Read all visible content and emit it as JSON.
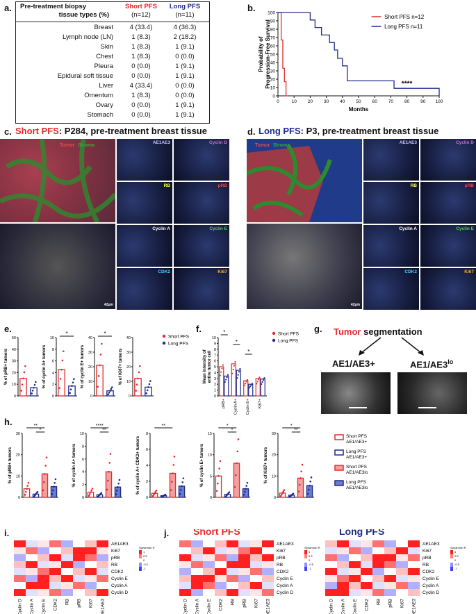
{
  "panel_letters": {
    "a": "a.",
    "b": "b.",
    "c": "c.",
    "d": "d.",
    "e": "e.",
    "f": "f.",
    "g": "g.",
    "h": "h.",
    "i": "i.",
    "j": "j."
  },
  "table_a": {
    "header": [
      "Pre-treatment biopsy",
      "tissue types (%)",
      "Short PFS",
      "(n=12)",
      "Long PFS",
      "(n=11)"
    ],
    "rows": [
      [
        "Breast",
        "4 (33.4)",
        "4 (36.3)"
      ],
      [
        "Lymph node (LN)",
        "1 (8.3)",
        "2 (18.2)"
      ],
      [
        "Skin",
        "1 (8.3)",
        "1 (9.1)"
      ],
      [
        "Chest",
        "1 (8.3)",
        "0 (0.0)"
      ],
      [
        "Pleura",
        "0 (0.0)",
        "1 (9.1)"
      ],
      [
        "Epidural soft tissue",
        "0 (0.0)",
        "1 (9.1)"
      ],
      [
        "Liver",
        "4 (33.4)",
        "0 (0.0)"
      ],
      [
        "Omentum",
        "1 (8.3)",
        "0 (0.0)"
      ],
      [
        "Ovary",
        "0 (0.0)",
        "1 (9.1)"
      ],
      [
        "Stomach",
        "0 (0.0)",
        "1 (9.1)"
      ]
    ]
  },
  "chart_data": [
    {
      "id": "b",
      "type": "line",
      "ylabel": "Probability of Progression-Free Survival",
      "xlabel": "Months",
      "xlim": [
        0,
        100
      ],
      "ylim": [
        0,
        100
      ],
      "xticks": [
        0,
        10,
        20,
        30,
        40,
        50,
        60,
        70,
        80,
        90,
        100
      ],
      "yticks": [
        0,
        10,
        20,
        30,
        40,
        50,
        60,
        70,
        80,
        90,
        100
      ],
      "annotation": "****",
      "series": [
        {
          "name": "Short PFS n=12",
          "color": "#e32b2b",
          "x": [
            0,
            2,
            2,
            3,
            3,
            4,
            4,
            5,
            5,
            6
          ],
          "y": [
            100,
            100,
            67,
            67,
            33,
            33,
            17,
            17,
            0,
            0
          ]
        },
        {
          "name": "Long PFS n=11",
          "color": "#1d2a8c",
          "x": [
            0,
            20,
            20,
            23,
            23,
            27,
            27,
            32,
            32,
            35,
            35,
            37,
            37,
            40,
            40,
            43,
            43,
            72,
            72,
            100,
            100
          ],
          "y": [
            100,
            100,
            91,
            91,
            82,
            82,
            73,
            73,
            64,
            64,
            55,
            55,
            45,
            45,
            36,
            36,
            18,
            18,
            9,
            9,
            0
          ]
        }
      ]
    },
    {
      "id": "e",
      "type": "bar",
      "categories": [
        "Short PFS",
        "Long PFS"
      ],
      "subplots": [
        {
          "ylabel": "% of pRB+ tumors",
          "ylim": [
            0,
            50
          ],
          "yticks": [
            0,
            10,
            20,
            30,
            40,
            50
          ],
          "values": [
            15,
            7
          ],
          "sig": ""
        },
        {
          "ylabel": "% of cyclin A+ tumors",
          "ylim": [
            0,
            10
          ],
          "yticks": [
            0,
            2,
            4,
            6,
            8,
            10
          ],
          "values": [
            4.5,
            1.7
          ],
          "sig": "*"
        },
        {
          "ylabel": "% of cyclin E+ tumors",
          "ylim": [
            0,
            40
          ],
          "yticks": [
            0,
            10,
            20,
            30,
            40
          ],
          "values": [
            21,
            3.5
          ],
          "sig": "*"
        },
        {
          "ylabel": "% of Ki67+ tumors",
          "ylim": [
            0,
            40
          ],
          "yticks": [
            0,
            10,
            20,
            30,
            40
          ],
          "values": [
            12,
            6
          ],
          "sig": ""
        }
      ],
      "legend": [
        "Short PFS",
        "Long PFS"
      ]
    },
    {
      "id": "f",
      "type": "bar",
      "ylabel": "Mean intensity of entire tumor cell",
      "categories": [
        "pRB+",
        "Cyclin A+",
        "Cyclin E+",
        "Ki67+"
      ],
      "ylim": [
        0,
        10
      ],
      "yticks": [
        0,
        1,
        2,
        3,
        4,
        5,
        6,
        7,
        8,
        9,
        10
      ],
      "series": [
        {
          "name": "Short PFS",
          "values": [
            5.0,
            5.5,
            2.6,
            3.0
          ]
        },
        {
          "name": "Long PFS",
          "values": [
            3.4,
            4.4,
            2.0,
            2.9
          ]
        }
      ],
      "sig": [
        "*",
        "*",
        "*",
        ""
      ]
    },
    {
      "id": "h",
      "type": "bar",
      "categories": [
        "Short PFS AE1/AE3+",
        "Long PFS AE1/AE3+",
        "Short PFS AE1/AE3lo",
        "Long PFS AE1/AE3lo"
      ],
      "subplots": [
        {
          "ylabel": "% of pRB+ tumors",
          "ylim": [
            0,
            30
          ],
          "yticks": [
            0,
            10,
            20,
            30
          ],
          "values": [
            4,
            1.5,
            11,
            5
          ],
          "sig": [
            "**",
            "*"
          ]
        },
        {
          "ylabel": "% of cyclin A+ tumors",
          "ylim": [
            0,
            10
          ],
          "yticks": [
            0,
            2,
            4,
            6,
            8,
            10
          ],
          "values": [
            0.8,
            0.4,
            4,
            1.6
          ],
          "sig": [
            "****",
            "**"
          ]
        },
        {
          "ylabel": "% of cyclin A+ CDK2+ tumors",
          "ylim": [
            0,
            8
          ],
          "yticks": [
            0,
            2,
            4,
            6,
            8
          ],
          "values": [
            0.5,
            0.2,
            3,
            1.4
          ],
          "sig": [
            "**"
          ]
        },
        {
          "ylabel": "% of cyclin E+ tumors",
          "ylim": [
            0,
            15
          ],
          "yticks": [
            0,
            5,
            10,
            15
          ],
          "values": [
            5,
            0.7,
            8,
            2
          ],
          "sig": [
            "*",
            "*"
          ]
        },
        {
          "ylabel": "% of Ki67+ tumors",
          "ylim": [
            0,
            30
          ],
          "yticks": [
            0,
            10,
            20,
            30
          ],
          "values": [
            2,
            1,
            9,
            5.5
          ],
          "sig": [
            "*",
            "**"
          ]
        }
      ],
      "legend": [
        "Short PFS AE1/AE3+",
        "Long PFS AE1/AE3+",
        "Short PFS AE1/AE3lo",
        "Long PFS AE1/AE3lo"
      ]
    },
    {
      "id": "i",
      "type": "heatmap",
      "labels": [
        "Cyclin D",
        "Cyclin A",
        "Cyclin E",
        "CDK2",
        "RB",
        "pRB",
        "Ki67",
        "AE1AE3"
      ],
      "colorbar": {
        "title": "Spearman R",
        "ticks": [
          "1",
          "0.5",
          "0",
          "-0.5",
          "-1"
        ]
      }
    },
    {
      "id": "j-short",
      "type": "heatmap",
      "title": "Short PFS",
      "labels": [
        "Cyclin D",
        "Cyclin A",
        "Cyclin E",
        "CDK2",
        "RB",
        "pRB",
        "Ki67",
        "AE1AE3"
      ],
      "colorbar": {
        "title": "Spearman R",
        "ticks": [
          "1",
          "0.5",
          "0",
          "-0.5",
          "-1"
        ]
      }
    },
    {
      "id": "j-long",
      "type": "heatmap",
      "title": "Long PFS",
      "labels": [
        "Cyclin D",
        "Cyclin A",
        "Cyclin E",
        "CDK2",
        "RB",
        "pRB",
        "Ki67",
        "AE1AE3"
      ],
      "colorbar": {
        "title": "Spearman R",
        "ticks": [
          "1",
          "0.5",
          "0",
          "-0.5",
          "-1"
        ]
      }
    }
  ],
  "panel_c": {
    "title_red": "Short PFS",
    "title_rest": ": P284, pre-treatment breast tissue",
    "overlay_tumor": "Tumor",
    "overlay_stroma": "Stroma",
    "tiles": [
      "AE1AE3",
      "Cyclin D",
      "RB",
      "pRB",
      "Cyclin A",
      "Cyclin E",
      "CDK2",
      "Ki67"
    ],
    "scale": "42μm"
  },
  "panel_d": {
    "title_blue": "Long PFS",
    "title_rest": ": P3, pre-treatment breast tissue",
    "overlay_tumor": "Tumor",
    "overlay_stroma": "Stroma",
    "tiles": [
      "AE1AE3",
      "Cyclin D",
      "RB",
      "pRB",
      "Cyclin A",
      "Cyclin E",
      "CDK2",
      "Ki67"
    ],
    "scale": "42μm"
  },
  "panel_g": {
    "title_red": "Tumor",
    "title_rest": " segmentation",
    "left": "AE1/AE3+",
    "right_base": "AE1/AE3",
    "right_sup": "lo"
  },
  "colors": {
    "short": "#e32b2b",
    "long": "#1d2a8c",
    "short_light": "#f08080",
    "long_light": "#5468c0"
  }
}
